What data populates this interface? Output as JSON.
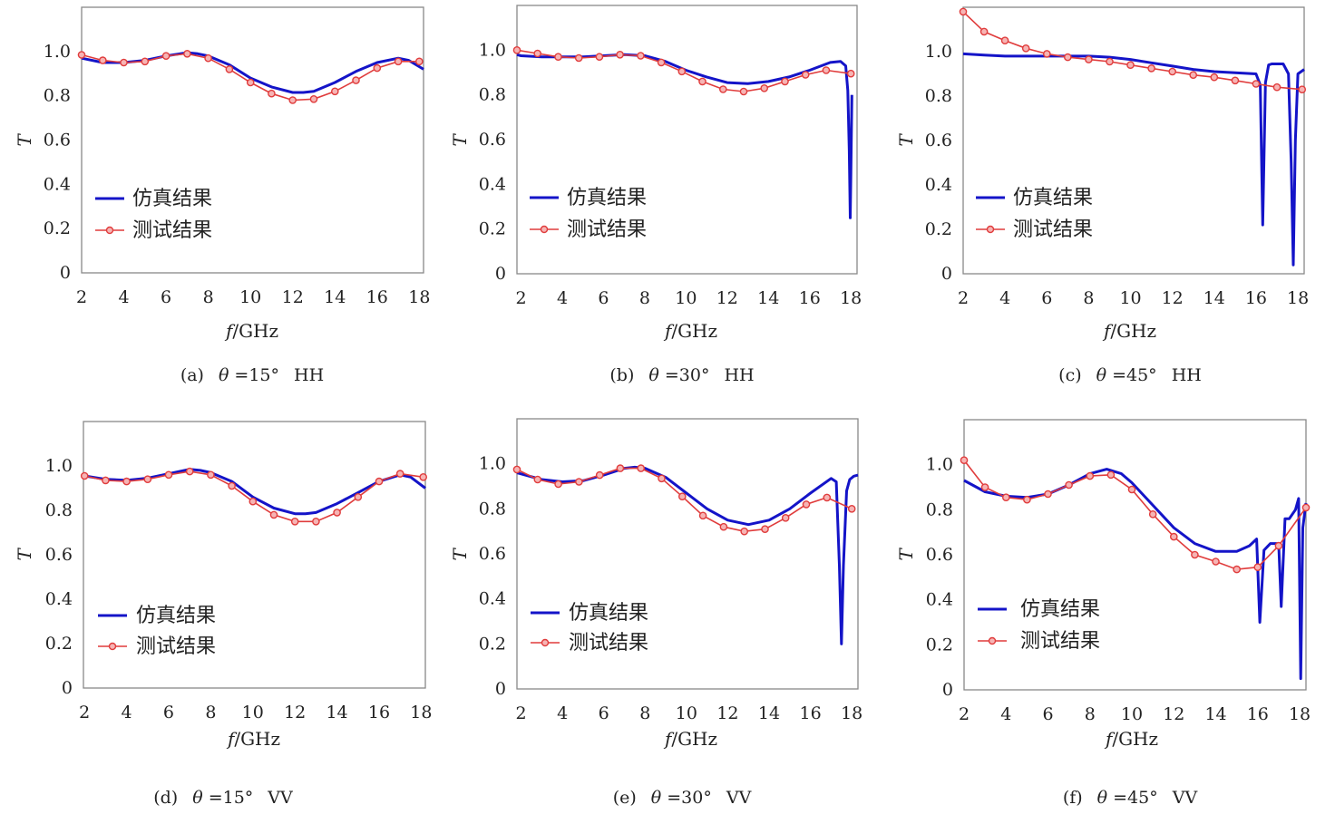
{
  "figure": {
    "legend": {
      "sim": "仿真结果",
      "meas": "测试结果"
    },
    "colors": {
      "simulation": "#1414c8",
      "measurement": "#e03c3c"
    },
    "xlabel_italic": "f",
    "xlabel_unit": "/GHz",
    "ylabel": "T"
  },
  "chart_data": [
    {
      "type": "line",
      "caption": {
        "tag": "(a)",
        "theta": "θ",
        "value": "=15°",
        "pol": "HH"
      },
      "xlabel": "f/GHz",
      "ylabel": "T",
      "xlim": [
        2,
        18.2
      ],
      "ylim": [
        0,
        1.2
      ],
      "xticks": [
        "2",
        "4",
        "6",
        "8",
        "10",
        "12",
        "14",
        "16",
        "18"
      ],
      "yticks": [
        "0",
        "0.2",
        "0.4",
        "0.6",
        "0.8",
        "1.0"
      ],
      "grid": false,
      "legend_position": "lower-left",
      "series": [
        {
          "name": "仿真结果",
          "x": [
            2,
            3,
            4,
            5,
            6,
            7,
            7.5,
            8,
            9,
            10,
            11,
            12,
            12.5,
            13,
            14,
            15,
            16,
            17,
            17.5,
            18.2
          ],
          "y": [
            0.97,
            0.95,
            0.95,
            0.96,
            0.98,
            0.995,
            0.99,
            0.98,
            0.94,
            0.88,
            0.84,
            0.815,
            0.815,
            0.82,
            0.86,
            0.91,
            0.95,
            0.97,
            0.96,
            0.92
          ]
        },
        {
          "name": "测试结果",
          "x": [
            2,
            3,
            4,
            5,
            6,
            7,
            8,
            9,
            10,
            11,
            12,
            13,
            14,
            15,
            16,
            17,
            18
          ],
          "y": [
            0.985,
            0.96,
            0.95,
            0.955,
            0.98,
            0.99,
            0.97,
            0.92,
            0.86,
            0.81,
            0.78,
            0.785,
            0.82,
            0.87,
            0.925,
            0.955,
            0.955
          ]
        }
      ]
    },
    {
      "type": "line",
      "caption": {
        "tag": "(b)",
        "theta": "θ",
        "value": "=30°",
        "pol": "HH"
      },
      "xlabel": "f/GHz",
      "ylabel": "T",
      "xlim": [
        1.8,
        18.3
      ],
      "ylim": [
        0,
        1.2
      ],
      "xticks": [
        "2",
        "4",
        "6",
        "8",
        "10",
        "12",
        "14",
        "16",
        "18"
      ],
      "yticks": [
        "0",
        "0.2",
        "0.4",
        "0.6",
        "0.8",
        "1.0"
      ],
      "grid": false,
      "legend_position": "lower-left",
      "series": [
        {
          "name": "仿真结果",
          "x": [
            1.8,
            2,
            3,
            4,
            5,
            6,
            7,
            8,
            9,
            10,
            11,
            12,
            13,
            14,
            15,
            16,
            17,
            17.5,
            17.75,
            17.85,
            17.92,
            17.97,
            18.0,
            18.05
          ],
          "y": [
            0.98,
            0.975,
            0.97,
            0.97,
            0.97,
            0.975,
            0.98,
            0.975,
            0.95,
            0.91,
            0.88,
            0.855,
            0.85,
            0.86,
            0.88,
            0.91,
            0.945,
            0.95,
            0.93,
            0.82,
            0.55,
            0.25,
            0.45,
            0.8
          ]
        },
        {
          "name": "测试结果",
          "x": [
            1.8,
            2.8,
            3.8,
            4.8,
            5.8,
            6.8,
            7.8,
            8.8,
            9.8,
            10.8,
            11.8,
            12.8,
            13.8,
            14.8,
            15.8,
            16.8,
            18.0
          ],
          "y": [
            1.0,
            0.985,
            0.97,
            0.965,
            0.97,
            0.98,
            0.975,
            0.945,
            0.905,
            0.86,
            0.825,
            0.815,
            0.83,
            0.86,
            0.89,
            0.91,
            0.895
          ]
        }
      ]
    },
    {
      "type": "line",
      "caption": {
        "tag": "(c)",
        "theta": "θ",
        "value": "=45°",
        "pol": "HH"
      },
      "xlabel": "f/GHz",
      "ylabel": "T",
      "xlim": [
        2,
        18.3
      ],
      "ylim": [
        0,
        1.2
      ],
      "xticks": [
        "2",
        "4",
        "6",
        "8",
        "10",
        "12",
        "14",
        "16",
        "18"
      ],
      "yticks": [
        "0",
        "0.2",
        "0.4",
        "0.6",
        "0.8",
        "1.0"
      ],
      "grid": false,
      "legend_position": "lower-left",
      "series": [
        {
          "name": "仿真结果",
          "x": [
            2,
            3,
            4,
            5,
            6,
            7,
            8,
            9,
            10,
            11,
            12,
            13,
            14,
            15,
            16.0,
            16.2,
            16.32,
            16.45,
            16.6,
            16.75,
            17.0,
            17.3,
            17.55,
            17.68,
            17.78,
            17.88,
            18.0,
            18.3
          ],
          "y": [
            0.99,
            0.985,
            0.98,
            0.98,
            0.98,
            0.98,
            0.98,
            0.975,
            0.965,
            0.95,
            0.935,
            0.92,
            0.91,
            0.905,
            0.9,
            0.85,
            0.22,
            0.86,
            0.94,
            0.945,
            0.945,
            0.945,
            0.9,
            0.5,
            0.04,
            0.6,
            0.9,
            0.92
          ]
        },
        {
          "name": "测试结果",
          "x": [
            2,
            3,
            4,
            5,
            6,
            7,
            8,
            9,
            10,
            11,
            12,
            13,
            14,
            15,
            16,
            17,
            18.2
          ],
          "y": [
            1.18,
            1.09,
            1.05,
            1.015,
            0.99,
            0.975,
            0.965,
            0.955,
            0.94,
            0.925,
            0.91,
            0.895,
            0.885,
            0.87,
            0.855,
            0.84,
            0.83
          ]
        }
      ]
    },
    {
      "type": "line",
      "caption": {
        "tag": "(d)",
        "theta": "θ",
        "value": "=15°",
        "pol": "VV"
      },
      "xlabel": "f/GHz",
      "ylabel": "T",
      "xlim": [
        1.95,
        18.2
      ],
      "ylim": [
        0,
        1.2
      ],
      "xticks": [
        "2",
        "4",
        "6",
        "8",
        "10",
        "12",
        "14",
        "16",
        "18"
      ],
      "yticks": [
        "0",
        "0.2",
        "0.4",
        "0.6",
        "0.8",
        "1.0"
      ],
      "grid": false,
      "legend_position": "lower-left",
      "series": [
        {
          "name": "仿真结果",
          "x": [
            2,
            3,
            4,
            5,
            6,
            7,
            7.5,
            8,
            9,
            10,
            11,
            12,
            12.5,
            13,
            14,
            15,
            16,
            17,
            17.5,
            18.2
          ],
          "y": [
            0.955,
            0.94,
            0.935,
            0.945,
            0.965,
            0.985,
            0.98,
            0.97,
            0.93,
            0.86,
            0.81,
            0.785,
            0.785,
            0.79,
            0.83,
            0.88,
            0.93,
            0.96,
            0.95,
            0.9
          ]
        },
        {
          "name": "测试结果",
          "x": [
            2,
            3,
            4,
            5,
            6,
            7,
            8,
            9,
            10,
            11,
            12,
            13,
            14,
            15,
            16,
            17,
            18.1
          ],
          "y": [
            0.955,
            0.935,
            0.93,
            0.94,
            0.96,
            0.975,
            0.96,
            0.91,
            0.84,
            0.78,
            0.75,
            0.75,
            0.79,
            0.86,
            0.93,
            0.965,
            0.95
          ]
        }
      ]
    },
    {
      "type": "line",
      "caption": {
        "tag": "(e)",
        "theta": "θ",
        "value": "=30°",
        "pol": "VV"
      },
      "xlabel": "f/GHz",
      "ylabel": "T",
      "xlim": [
        1.8,
        18.3
      ],
      "ylim": [
        0,
        1.2
      ],
      "xticks": [
        "2",
        "4",
        "6",
        "8",
        "10",
        "12",
        "14",
        "16",
        "18"
      ],
      "yticks": [
        "0",
        "0.2",
        "0.4",
        "0.6",
        "0.8",
        "1.0"
      ],
      "grid": false,
      "legend_position": "lower-left",
      "series": [
        {
          "name": "仿真结果",
          "x": [
            1.8,
            2,
            3,
            4,
            5,
            6,
            7,
            7.5,
            8,
            9,
            10,
            11,
            12,
            13,
            14,
            15,
            16,
            17,
            17.25,
            17.4,
            17.5,
            17.6,
            17.75,
            17.9,
            18.1,
            18.3
          ],
          "y": [
            0.96,
            0.955,
            0.93,
            0.92,
            0.925,
            0.95,
            0.98,
            0.985,
            0.98,
            0.94,
            0.87,
            0.8,
            0.75,
            0.73,
            0.75,
            0.8,
            0.87,
            0.935,
            0.92,
            0.55,
            0.2,
            0.55,
            0.88,
            0.93,
            0.945,
            0.95
          ]
        },
        {
          "name": "测试结果",
          "x": [
            1.8,
            2.8,
            3.8,
            4.8,
            5.8,
            6.8,
            7.8,
            8.8,
            9.8,
            10.8,
            11.8,
            12.8,
            13.8,
            14.8,
            15.8,
            16.8,
            18.0
          ],
          "y": [
            0.975,
            0.93,
            0.91,
            0.92,
            0.95,
            0.98,
            0.98,
            0.935,
            0.855,
            0.77,
            0.72,
            0.7,
            0.71,
            0.76,
            0.82,
            0.85,
            0.8
          ]
        }
      ]
    },
    {
      "type": "line",
      "caption": {
        "tag": "(f)",
        "theta": "θ",
        "value": "=45°",
        "pol": "VV"
      },
      "xlabel": "f/GHz",
      "ylabel": "T",
      "xlim": [
        2,
        18.3
      ],
      "ylim": [
        0,
        1.2
      ],
      "xticks": [
        "2",
        "4",
        "6",
        "8",
        "10",
        "12",
        "14",
        "16",
        "18"
      ],
      "yticks": [
        "0",
        "0.2",
        "0.4",
        "0.6",
        "0.8",
        "1.0"
      ],
      "grid": false,
      "legend_position": "lower-left",
      "series": [
        {
          "name": "仿真结果",
          "x": [
            2,
            3,
            4,
            5,
            6,
            7,
            8,
            8.8,
            9.5,
            10,
            11,
            12,
            13,
            14,
            15,
            15.6,
            15.95,
            16.1,
            16.3,
            16.6,
            17.0,
            17.12,
            17.3,
            17.5,
            17.8,
            17.95,
            18.05,
            18.15,
            18.3
          ],
          "y": [
            0.93,
            0.88,
            0.86,
            0.855,
            0.87,
            0.91,
            0.96,
            0.98,
            0.96,
            0.92,
            0.82,
            0.72,
            0.65,
            0.615,
            0.615,
            0.64,
            0.67,
            0.3,
            0.62,
            0.65,
            0.65,
            0.37,
            0.76,
            0.76,
            0.8,
            0.85,
            0.05,
            0.72,
            0.83
          ]
        },
        {
          "name": "测试结果",
          "x": [
            2,
            3,
            4,
            5,
            6,
            7,
            8,
            9,
            10,
            11,
            12,
            13,
            14,
            15,
            16,
            17,
            18.3
          ],
          "y": [
            1.02,
            0.9,
            0.855,
            0.845,
            0.87,
            0.91,
            0.95,
            0.955,
            0.89,
            0.78,
            0.68,
            0.6,
            0.57,
            0.535,
            0.545,
            0.64,
            0.81
          ]
        }
      ]
    }
  ]
}
